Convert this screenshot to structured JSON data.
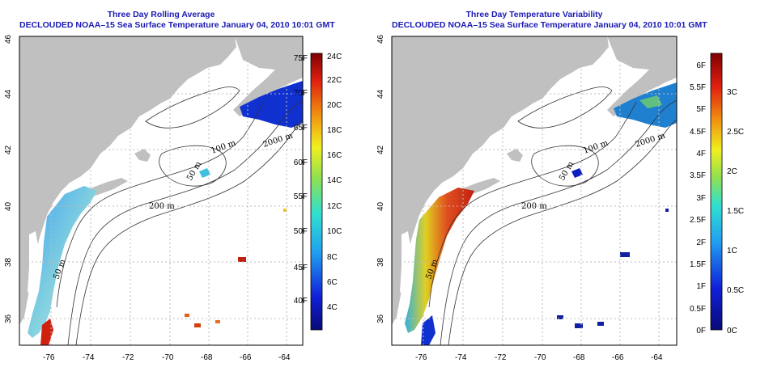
{
  "maps": [
    {
      "title": "Three Day Rolling Average",
      "subtitle": "DECLOUDED NOAA–15 Sea Surface Temperature January 04, 2010 10:01 GMT",
      "lat_ticks": [
        "36",
        "38",
        "40",
        "42",
        "44",
        "46"
      ],
      "lon_ticks": [
        "-76",
        "-74",
        "-72",
        "-70",
        "-68",
        "-66",
        "-64"
      ],
      "contour_labels": [
        "50 m",
        "100 m",
        "200 m",
        "2000 m",
        "50 m"
      ],
      "colorbar": {
        "left_labels": [
          "40F",
          "45F",
          "50F",
          "55F",
          "60F",
          "65F",
          "70F",
          "75F"
        ],
        "right_labels": [
          "4C",
          "6C",
          "8C",
          "10C",
          "12C",
          "14C",
          "16C",
          "18C",
          "20C",
          "22C",
          "24C"
        ]
      }
    },
    {
      "title": "Three Day Temperature Variability",
      "subtitle": "DECLOUDED NOAA–15 Sea Surface Temperature January 04, 2010 10:01 GMT",
      "lat_ticks": [
        "36",
        "38",
        "40",
        "42",
        "44",
        "46"
      ],
      "lon_ticks": [
        "-76",
        "-74",
        "-72",
        "-70",
        "-68",
        "-66",
        "-64"
      ],
      "contour_labels": [
        "50 m",
        "100 m",
        "200 m",
        "2000 m",
        "50 m"
      ],
      "colorbar": {
        "left_labels": [
          "0F",
          "0.5F",
          "1F",
          "1.5F",
          "2F",
          "2.5F",
          "3F",
          "3.5F",
          "4F",
          "4.5F",
          "5F",
          "5.5F",
          "6F"
        ],
        "right_labels": [
          "0C",
          "0.5C",
          "1C",
          "1.5C",
          "2C",
          "2.5C",
          "3C"
        ]
      }
    }
  ],
  "colors": {
    "title": "#1a1ab4",
    "land": "#c0c0c0",
    "grid": "#bbbbbb",
    "contour": "#333333"
  }
}
